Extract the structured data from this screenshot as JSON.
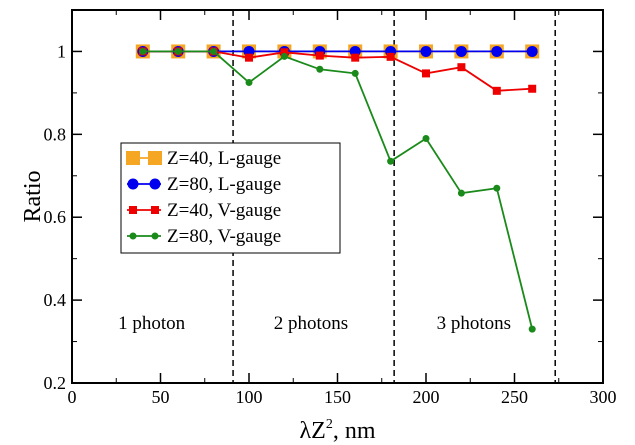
{
  "chart_data": {
    "type": "line",
    "xlabel": "λZ",
    "xlabel_sup": "2",
    "xlabel_suffix": ", nm",
    "ylabel": "Ratio",
    "xlim": [
      0,
      300
    ],
    "ylim": [
      0.2,
      1.1
    ],
    "x_ticks": [
      0,
      50,
      100,
      150,
      200,
      250,
      300
    ],
    "y_ticks": [
      0.2,
      0.4,
      0.6,
      0.8,
      1
    ],
    "x_tick_labels": [
      "0",
      "50",
      "100",
      "150",
      "200",
      "250",
      "300"
    ],
    "y_tick_labels": [
      "0.2",
      "0.4",
      "0.6",
      "0.8",
      "1"
    ],
    "grid": false,
    "legend_position": "left-middle",
    "dividers": [
      91,
      182,
      273
    ],
    "regions": [
      {
        "label": "1 photon",
        "x": 45,
        "y": 0.33
      },
      {
        "label": "2 photons",
        "x": 135,
        "y": 0.33
      },
      {
        "label": "3 photons",
        "x": 227,
        "y": 0.33
      }
    ],
    "series": [
      {
        "name": "Z=40, L-gauge",
        "color": "#f5a623",
        "marker": "square-large",
        "x": [
          40,
          60,
          80,
          100,
          120,
          140,
          160,
          180,
          200,
          220,
          240,
          260
        ],
        "y": [
          1,
          1,
          1,
          1,
          1,
          1,
          1,
          1,
          1,
          1,
          1,
          1
        ]
      },
      {
        "name": "Z=80, L-gauge",
        "color": "#0000ee",
        "marker": "circle",
        "x": [
          40,
          60,
          80,
          100,
          120,
          140,
          160,
          180,
          200,
          220,
          240,
          260
        ],
        "y": [
          1,
          1,
          1,
          1,
          1,
          1,
          1,
          1,
          1,
          1,
          1,
          1
        ]
      },
      {
        "name": "Z=40, V-gauge",
        "color": "#ee0000",
        "marker": "square-small",
        "x": [
          40,
          60,
          80,
          100,
          120,
          140,
          160,
          180,
          200,
          220,
          240,
          260
        ],
        "y": [
          1,
          1,
          1,
          0.985,
          0.998,
          0.99,
          0.985,
          0.987,
          0.947,
          0.962,
          0.905,
          0.91
        ]
      },
      {
        "name": "Z=80, V-gauge",
        "color": "#1a8a1a",
        "marker": "dot",
        "x": [
          40,
          60,
          80,
          100,
          120,
          140,
          160,
          180,
          200,
          220,
          240,
          260
        ],
        "y": [
          1,
          1,
          1,
          0.925,
          0.988,
          0.957,
          0.947,
          0.735,
          0.79,
          0.658,
          0.67,
          0.33
        ]
      }
    ]
  }
}
